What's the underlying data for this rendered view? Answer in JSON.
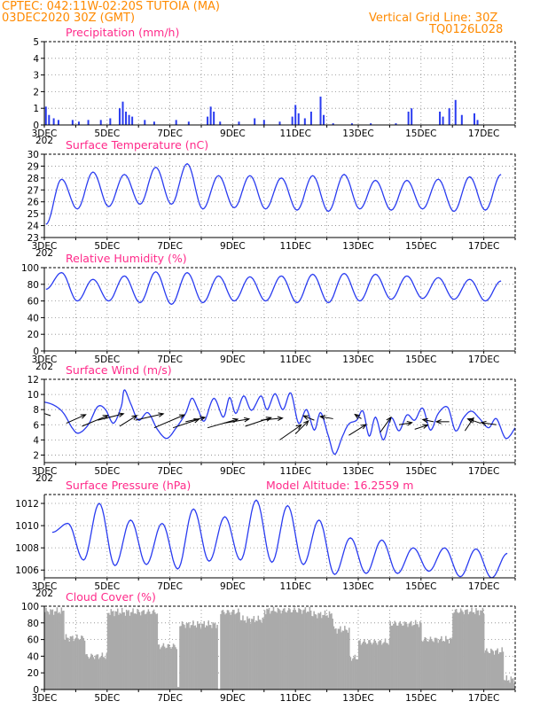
{
  "header": {
    "left_line1": "CPTEC:   042:11W-02:20S   TUTOIA (MA)",
    "left_line2": "03DEC2020 30Z (GMT)",
    "right_line1": "Vertical Grid Line: 30Z",
    "right_line2": "TQ0126L028"
  },
  "x_axis": {
    "tick_labels": [
      "3DEC",
      "5DEC",
      "7DEC",
      "9DEC",
      "11DEC",
      "13DEC",
      "15DEC",
      "17DEC"
    ],
    "day_start": 3,
    "day_end": 18,
    "partial_label": "202"
  },
  "colors": {
    "line": "#2a3cf0",
    "title": "#ff2a8a",
    "header": "#ff8a00",
    "cloud": "#aaaaaa",
    "arrow": "#000000"
  },
  "chart_data": [
    {
      "type": "bar",
      "title": "Precipitation (mm/h)",
      "ylim": [
        0,
        5
      ],
      "yticks": [
        0,
        1,
        2,
        3,
        4,
        5
      ],
      "grid": true,
      "x_unit": "day of December 2020",
      "events": [
        {
          "day": 3.05,
          "value": 1.1
        },
        {
          "day": 3.15,
          "value": 0.6
        },
        {
          "day": 3.3,
          "value": 0.4
        },
        {
          "day": 3.45,
          "value": 0.3
        },
        {
          "day": 3.9,
          "value": 0.3
        },
        {
          "day": 4.1,
          "value": 0.2
        },
        {
          "day": 4.4,
          "value": 0.3
        },
        {
          "day": 4.8,
          "value": 0.3
        },
        {
          "day": 5.1,
          "value": 0.4
        },
        {
          "day": 5.4,
          "value": 1.0
        },
        {
          "day": 5.5,
          "value": 1.4
        },
        {
          "day": 5.6,
          "value": 0.8
        },
        {
          "day": 5.7,
          "value": 0.6
        },
        {
          "day": 5.8,
          "value": 0.5
        },
        {
          "day": 6.2,
          "value": 0.3
        },
        {
          "day": 6.5,
          "value": 0.2
        },
        {
          "day": 7.2,
          "value": 0.3
        },
        {
          "day": 7.6,
          "value": 0.2
        },
        {
          "day": 8.2,
          "value": 0.5
        },
        {
          "day": 8.3,
          "value": 1.1
        },
        {
          "day": 8.4,
          "value": 0.8
        },
        {
          "day": 8.6,
          "value": 0.2
        },
        {
          "day": 9.2,
          "value": 0.2
        },
        {
          "day": 9.7,
          "value": 0.4
        },
        {
          "day": 10.0,
          "value": 0.3
        },
        {
          "day": 10.5,
          "value": 0.2
        },
        {
          "day": 10.9,
          "value": 0.5
        },
        {
          "day": 11.0,
          "value": 1.2
        },
        {
          "day": 11.1,
          "value": 0.7
        },
        {
          "day": 11.3,
          "value": 0.4
        },
        {
          "day": 11.5,
          "value": 0.8
        },
        {
          "day": 11.8,
          "value": 1.7
        },
        {
          "day": 11.9,
          "value": 0.6
        },
        {
          "day": 12.2,
          "value": 0.1
        },
        {
          "day": 12.8,
          "value": 0.1
        },
        {
          "day": 13.4,
          "value": 0.1
        },
        {
          "day": 14.2,
          "value": 0.1
        },
        {
          "day": 14.6,
          "value": 0.8
        },
        {
          "day": 14.7,
          "value": 1.0
        },
        {
          "day": 15.6,
          "value": 0.8
        },
        {
          "day": 15.7,
          "value": 0.5
        },
        {
          "day": 15.9,
          "value": 1.0
        },
        {
          "day": 16.1,
          "value": 1.5
        },
        {
          "day": 16.3,
          "value": 0.6
        },
        {
          "day": 16.7,
          "value": 0.7
        },
        {
          "day": 16.8,
          "value": 0.3
        }
      ]
    },
    {
      "type": "line",
      "title": "Surface Temperature (nC)",
      "ylim": [
        23,
        30
      ],
      "yticks": [
        23,
        24,
        25,
        26,
        27,
        28,
        29,
        30
      ],
      "grid": true,
      "x_unit": "day of December 2020",
      "daily_max": [
        27.9,
        28.5,
        28.3,
        28.9,
        29.2,
        28.2,
        28.2,
        28.0,
        28.2,
        28.3,
        27.8,
        27.8,
        27.9,
        28.1,
        28.3
      ],
      "daily_min": [
        24.1,
        25.4,
        25.6,
        25.8,
        25.8,
        25.4,
        25.5,
        25.4,
        25.3,
        25.2,
        25.4,
        25.3,
        25.4,
        25.2,
        25.3
      ]
    },
    {
      "type": "line",
      "title": "Relative Humidity (%)",
      "ylim": [
        0,
        100
      ],
      "yticks": [
        0,
        20,
        40,
        60,
        80,
        100
      ],
      "grid": true,
      "x_unit": "day of December 2020",
      "daily_max": [
        94,
        86,
        90,
        95,
        94,
        90,
        89,
        90,
        92,
        93,
        92,
        90,
        88,
        86,
        84
      ],
      "daily_min": [
        74,
        60,
        60,
        58,
        56,
        58,
        60,
        60,
        58,
        58,
        60,
        62,
        63,
        62,
        60
      ]
    },
    {
      "type": "line",
      "title": "Surface Wind (m/s)",
      "ylim": [
        1,
        12
      ],
      "yticks": [
        2,
        4,
        6,
        8,
        10,
        12
      ],
      "grid": true,
      "x_unit": "day of December 2020",
      "speed": [
        [
          3.0,
          9.0
        ],
        [
          3.3,
          8.6
        ],
        [
          3.6,
          7.6
        ],
        [
          3.9,
          5.5
        ],
        [
          4.1,
          4.9
        ],
        [
          4.4,
          6.0
        ],
        [
          4.7,
          8.4
        ],
        [
          4.95,
          8.0
        ],
        [
          5.2,
          6.2
        ],
        [
          5.45,
          8.4
        ],
        [
          5.55,
          10.6
        ],
        [
          5.75,
          8.8
        ],
        [
          6.0,
          6.6
        ],
        [
          6.3,
          7.6
        ],
        [
          6.6,
          5.4
        ],
        [
          6.9,
          4.2
        ],
        [
          7.2,
          5.6
        ],
        [
          7.5,
          7.5
        ],
        [
          7.7,
          9.5
        ],
        [
          7.9,
          8.0
        ],
        [
          8.1,
          6.5
        ],
        [
          8.4,
          9.5
        ],
        [
          8.7,
          7.0
        ],
        [
          8.9,
          9.6
        ],
        [
          9.1,
          7.5
        ],
        [
          9.35,
          9.8
        ],
        [
          9.6,
          7.9
        ],
        [
          9.9,
          9.8
        ],
        [
          10.1,
          8.0
        ],
        [
          10.35,
          10.1
        ],
        [
          10.6,
          8.0
        ],
        [
          10.85,
          10.2
        ],
        [
          11.1,
          6.2
        ],
        [
          11.35,
          8.0
        ],
        [
          11.6,
          5.3
        ],
        [
          11.8,
          7.6
        ],
        [
          12.05,
          4.5
        ],
        [
          12.25,
          2.1
        ],
        [
          12.5,
          4.5
        ],
        [
          12.7,
          6.1
        ],
        [
          12.95,
          6.6
        ],
        [
          13.15,
          7.8
        ],
        [
          13.35,
          4.5
        ],
        [
          13.55,
          7.0
        ],
        [
          13.8,
          4.0
        ],
        [
          14.05,
          6.9
        ],
        [
          14.3,
          5.2
        ],
        [
          14.55,
          7.3
        ],
        [
          14.8,
          6.6
        ],
        [
          15.05,
          8.2
        ],
        [
          15.3,
          5.3
        ],
        [
          15.55,
          7.5
        ],
        [
          15.85,
          8.3
        ],
        [
          16.1,
          5.2
        ],
        [
          16.35,
          6.9
        ],
        [
          16.6,
          7.8
        ],
        [
          16.85,
          6.9
        ],
        [
          17.15,
          5.6
        ],
        [
          17.4,
          6.8
        ],
        [
          17.7,
          4.2
        ],
        [
          18.0,
          5.6
        ]
      ],
      "wind_vectors": [
        {
          "day": 3.2,
          "at": 7.2,
          "u": -6,
          "v": 2
        },
        {
          "day": 3.7,
          "at": 6.2,
          "u": 9,
          "v": 4
        },
        {
          "day": 4.2,
          "at": 5.8,
          "u": 12,
          "v": 5
        },
        {
          "day": 4.7,
          "at": 6.6,
          "u": 12,
          "v": 3
        },
        {
          "day": 5.4,
          "at": 5.8,
          "u": 8,
          "v": 5
        },
        {
          "day": 5.9,
          "at": 6.6,
          "u": 13,
          "v": 3
        },
        {
          "day": 6.5,
          "at": 5.6,
          "u": 14,
          "v": 6
        },
        {
          "day": 7.1,
          "at": 5.6,
          "u": 12,
          "v": 4
        },
        {
          "day": 7.5,
          "at": 6.4,
          "u": 9,
          "v": 2
        },
        {
          "day": 8.2,
          "at": 5.6,
          "u": 14,
          "v": 4
        },
        {
          "day": 8.7,
          "at": 6.2,
          "u": 12,
          "v": 2
        },
        {
          "day": 9.4,
          "at": 5.8,
          "u": 12,
          "v": 4
        },
        {
          "day": 9.9,
          "at": 6.6,
          "u": 10,
          "v": 1
        },
        {
          "day": 10.5,
          "at": 4.0,
          "u": 10,
          "v": 7
        },
        {
          "day": 11.0,
          "at": 4.8,
          "u": 6,
          "v": 6
        },
        {
          "day": 11.6,
          "at": 6.6,
          "u": -5,
          "v": 2
        },
        {
          "day": 12.2,
          "at": 6.8,
          "u": -6,
          "v": 1
        },
        {
          "day": 12.7,
          "at": 4.6,
          "u": 8,
          "v": 5
        },
        {
          "day": 13.1,
          "at": 6.8,
          "u": -3,
          "v": 2
        },
        {
          "day": 13.7,
          "at": 5.0,
          "u": 5,
          "v": 7
        },
        {
          "day": 14.3,
          "at": 6.0,
          "u": 6,
          "v": 1
        },
        {
          "day": 14.8,
          "at": 5.4,
          "u": 6,
          "v": 2
        },
        {
          "day": 15.4,
          "at": 6.4,
          "u": -5,
          "v": 1
        },
        {
          "day": 15.9,
          "at": 6.4,
          "u": -6,
          "v": 0
        },
        {
          "day": 16.4,
          "at": 5.2,
          "u": 4,
          "v": 6
        },
        {
          "day": 16.9,
          "at": 6.2,
          "u": -6,
          "v": 2
        },
        {
          "day": 17.4,
          "at": 6.0,
          "u": -7,
          "v": 1
        }
      ]
    },
    {
      "type": "line",
      "title": "Surface Pressure (hPa)",
      "subtitle": "Model Altitude: 16.2559 m",
      "ylim": [
        1005.3,
        1012.8
      ],
      "yticks": [
        1006,
        1008,
        1010,
        1012
      ],
      "grid": true,
      "x_unit": "day of December 2020",
      "phase": 0.75,
      "daily_max": [
        1010.2,
        1012.0,
        1010.5,
        1010.2,
        1011.5,
        1010.8,
        1012.3,
        1011.8,
        1010.5,
        1008.9,
        1008.7,
        1008.0,
        1008.0,
        1007.9,
        1007.5
      ],
      "daily_min": [
        1009.4,
        1006.9,
        1006.4,
        1006.5,
        1006.1,
        1006.8,
        1006.9,
        1006.7,
        1006.5,
        1005.6,
        1005.7,
        1005.7,
        1005.9,
        1005.4,
        1005.3
      ]
    },
    {
      "type": "bar",
      "title": "Cloud Cover (%)",
      "ylim": [
        0,
        100
      ],
      "yticks": [
        0,
        20,
        40,
        60,
        80,
        100
      ],
      "grid": true,
      "x_unit": "day of December 2020",
      "segments": [
        {
          "from": 3.0,
          "to": 3.6,
          "level": 94
        },
        {
          "from": 3.6,
          "to": 4.3,
          "level": 62
        },
        {
          "from": 4.3,
          "to": 5.0,
          "level": 40
        },
        {
          "from": 5.0,
          "to": 6.6,
          "level": 93
        },
        {
          "from": 6.6,
          "to": 7.2,
          "level": 52
        },
        {
          "from": 7.2,
          "to": 7.3,
          "level": 3
        },
        {
          "from": 7.3,
          "to": 8.5,
          "level": 78
        },
        {
          "from": 8.5,
          "to": 8.6,
          "level": 0
        },
        {
          "from": 8.6,
          "to": 9.2,
          "level": 93
        },
        {
          "from": 9.2,
          "to": 10.0,
          "level": 84
        },
        {
          "from": 10.0,
          "to": 11.5,
          "level": 95
        },
        {
          "from": 11.5,
          "to": 12.2,
          "level": 90
        },
        {
          "from": 12.2,
          "to": 12.7,
          "level": 72
        },
        {
          "from": 12.7,
          "to": 13.0,
          "level": 38
        },
        {
          "from": 13.0,
          "to": 14.0,
          "level": 57
        },
        {
          "from": 14.0,
          "to": 15.0,
          "level": 79
        },
        {
          "from": 15.0,
          "to": 16.0,
          "level": 60
        },
        {
          "from": 16.0,
          "to": 17.0,
          "level": 94
        },
        {
          "from": 17.0,
          "to": 17.6,
          "level": 46
        },
        {
          "from": 17.6,
          "to": 18.0,
          "level": 12
        }
      ]
    }
  ]
}
